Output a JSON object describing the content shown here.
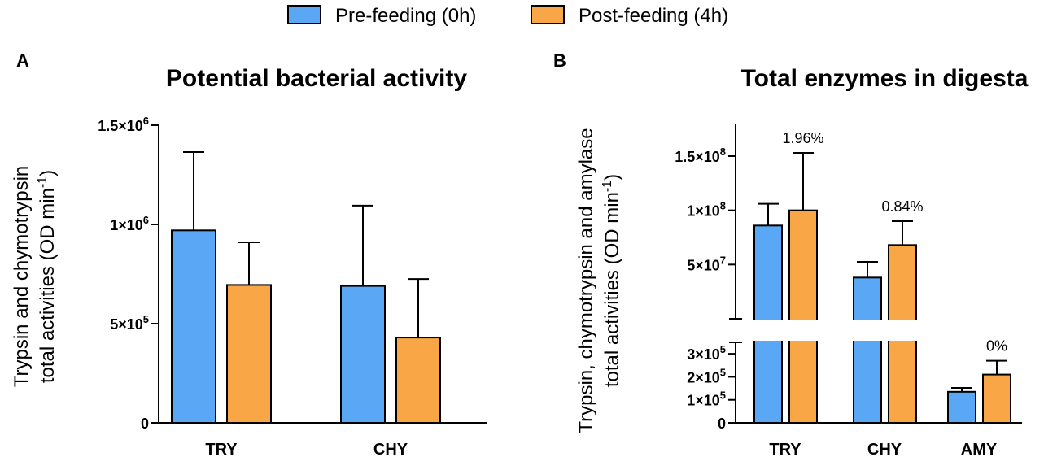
{
  "colors": {
    "pre": "#5aa7f5",
    "post": "#f8a646",
    "stroke": "#000000"
  },
  "legend": {
    "pre_label": "Pre-feeding (0h)",
    "post_label": "Post-feeding (4h)"
  },
  "chart_data": [
    {
      "panel": "A",
      "type": "bar",
      "title": "Potential bacterial activity",
      "ylabel_line1": "Trypsin and chymotrypsin",
      "ylabel_line2": "total activities (OD min",
      "ylabel_sup": "-1",
      "ylabel_end": ")",
      "categories": [
        "TRY",
        "CHY"
      ],
      "ylim": [
        0,
        1500000
      ],
      "yticks": [
        {
          "value": 0,
          "base": "0",
          "exp": ""
        },
        {
          "value": 500000,
          "base": "5×10",
          "exp": "5"
        },
        {
          "value": 1000000,
          "base": "1×10",
          "exp": "6"
        },
        {
          "value": 1500000,
          "base": "1.5×10",
          "exp": "6"
        }
      ],
      "series": [
        {
          "name": "Pre-feeding (0h)",
          "values": [
            970000,
            690000
          ],
          "errors": [
            395000,
            405000
          ]
        },
        {
          "name": "Post-feeding (4h)",
          "values": [
            695000,
            430000
          ],
          "errors": [
            215000,
            295000
          ]
        }
      ]
    },
    {
      "panel": "B",
      "type": "bar",
      "title": "Total enzymes in digesta",
      "ylabel_line1": "Trypsin, chymotrypsin and amylase",
      "ylabel_line2": "total activities (OD min",
      "ylabel_sup": "-1",
      "ylabel_end": ")",
      "categories": [
        "TRY",
        "CHY",
        "AMY"
      ],
      "axis_break": true,
      "lower_segment": {
        "min": 0,
        "max": 350000
      },
      "upper_segment": {
        "min": 0,
        "max": 180000000
      },
      "yticks_lower": [
        {
          "value": 0,
          "base": "0",
          "exp": ""
        },
        {
          "value": 100000,
          "base": "1×10",
          "exp": "5"
        },
        {
          "value": 200000,
          "base": "2×10",
          "exp": "5"
        },
        {
          "value": 300000,
          "base": "3×10",
          "exp": "5"
        }
      ],
      "yticks_upper": [
        {
          "value": 50000000,
          "base": "5×10",
          "exp": "7"
        },
        {
          "value": 100000000,
          "base": "1×10",
          "exp": "8"
        },
        {
          "value": 150000000,
          "base": "1.5×10",
          "exp": "8"
        }
      ],
      "series": [
        {
          "name": "Pre-feeding (0h)",
          "values": [
            86000000,
            38000000,
            135000
          ],
          "errors": [
            20000000,
            14500000,
            17000
          ]
        },
        {
          "name": "Post-feeding (4h)",
          "values": [
            100000000,
            68000000,
            210000
          ],
          "errors": [
            53000000,
            22000000,
            60000
          ]
        }
      ],
      "annotations": [
        "1.96%",
        "0.84%",
        "0%"
      ]
    }
  ]
}
